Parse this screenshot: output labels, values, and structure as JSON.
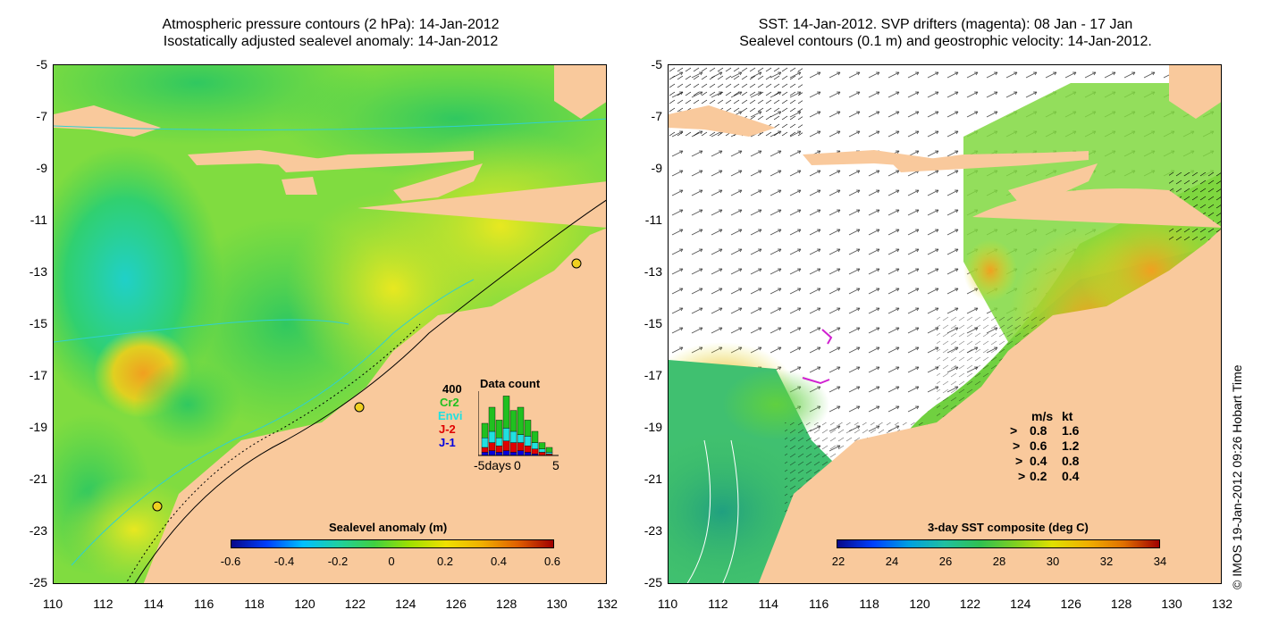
{
  "left": {
    "title_line1": "Atmospheric pressure contours (2 hPa): 14-Jan-2012",
    "title_line2": "Isostatically adjusted sealevel anomaly: 14-Jan-2012",
    "colorbar": {
      "title": "Sealevel anomaly (m)",
      "ticks": [
        "-0.6",
        "-0.4",
        "-0.2",
        "0",
        "0.2",
        "0.4",
        "0.6"
      ]
    },
    "data_count": {
      "max": "400",
      "title": "Data count",
      "series": [
        {
          "name": "Cr2",
          "color": "#20c020"
        },
        {
          "name": "Envi",
          "color": "#20e0e0"
        },
        {
          "name": "J-2",
          "color": "#e00000"
        },
        {
          "name": "J-1",
          "color": "#0000e0"
        }
      ],
      "xlabel_left": "-5days",
      "xlabel_mid": "0",
      "xlabel_right": "5"
    }
  },
  "right": {
    "title_line1": "SST: 14-Jan-2012. SVP drifters (magenta): 08 Jan - 17 Jan",
    "title_line2": "Sealevel contours (0.1 m) and geostrophic velocity: 14-Jan-2012.",
    "colorbar": {
      "title": "3-day SST composite (deg C)",
      "ticks": [
        "22",
        "24",
        "26",
        "28",
        "30",
        "32",
        "34"
      ]
    },
    "velocity_legend": {
      "header_ms": "m/s",
      "header_kt": "kt",
      "rows": [
        {
          "ms": "0.8",
          "kt": "1.6"
        },
        {
          "ms": "0.6",
          "kt": "1.2"
        },
        {
          "ms": "0.4",
          "kt": "0.8"
        },
        {
          "ms": "0.2",
          "kt": "0.4"
        }
      ]
    }
  },
  "axes": {
    "y_ticks": [
      "-5",
      "-7",
      "-9",
      "-11",
      "-13",
      "-15",
      "-17",
      "-19",
      "-21",
      "-23",
      "-25"
    ],
    "x_ticks": [
      "110",
      "112",
      "114",
      "116",
      "118",
      "120",
      "122",
      "124",
      "126",
      "128",
      "130",
      "132"
    ]
  },
  "copyright": "© IMOS 19-Jan-2012 09:26 Hobart Time",
  "colors": {
    "land": "#f9c99c",
    "ocean_green": "#40d050",
    "ocean_yellow": "#d8e820",
    "ocean_cyan": "#30d0d0",
    "ocean_orange": "#f0a020"
  }
}
